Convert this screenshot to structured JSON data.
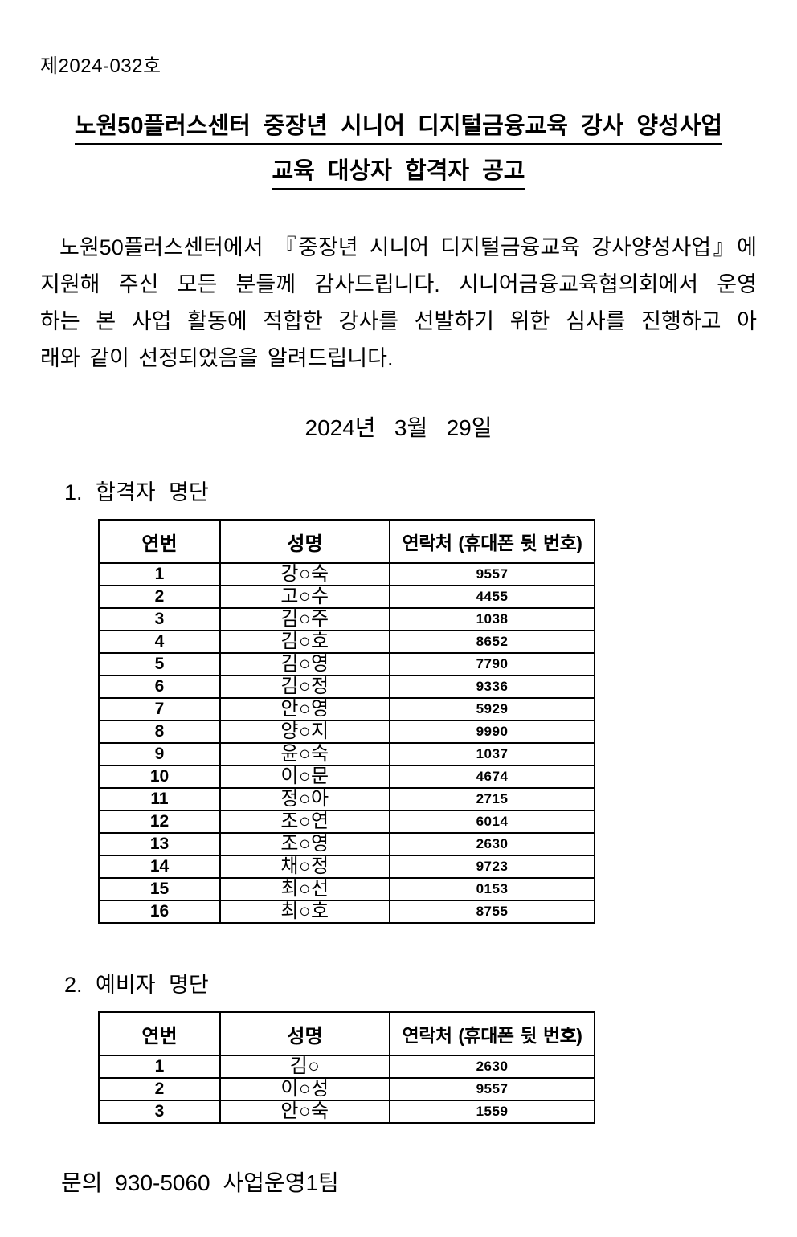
{
  "doc": {
    "number": "제2024-032호",
    "title_lines": [
      "노원50플러스센터 중장년 시니어 디지털금융교육 강사 양성사업",
      "교육 대상자 합격자 공고"
    ],
    "body_lines": [
      "노원50플러스센터에서 『중장년 시니어 디지털금융교육 강사양성사업』에",
      "지원해 주신 모든 분들께 감사드립니다. 시니어금융교육협의회에서 운영",
      "하는 본 사업 활동에 적합한 강사를 선발하기 위한 심사를 진행하고 아",
      "래와 같이 선정되었음을 알려드립니다."
    ],
    "date": "2024년   3월   29일",
    "section1_title": "1. 합격자 명단",
    "section2_title": "2. 예비자 명단",
    "contact": "문의 930-5060 사업운영1팀"
  },
  "table_headers": [
    "연번",
    "성명",
    "연락처 (휴대폰 뒷 번호)"
  ],
  "pass_list": [
    [
      "1",
      "강○숙",
      "9557"
    ],
    [
      "2",
      "고○수",
      "4455"
    ],
    [
      "3",
      "김○주",
      "1038"
    ],
    [
      "4",
      "김○호",
      "8652"
    ],
    [
      "5",
      "김○영",
      "7790"
    ],
    [
      "6",
      "김○정",
      "9336"
    ],
    [
      "7",
      "안○영",
      "5929"
    ],
    [
      "8",
      "양○지",
      "9990"
    ],
    [
      "9",
      "윤○숙",
      "1037"
    ],
    [
      "10",
      "이○문",
      "4674"
    ],
    [
      "11",
      "정○아",
      "2715"
    ],
    [
      "12",
      "조○연",
      "6014"
    ],
    [
      "13",
      "조○영",
      "2630"
    ],
    [
      "14",
      "채○정",
      "9723"
    ],
    [
      "15",
      "최○선",
      "0153"
    ],
    [
      "16",
      "최○호",
      "8755"
    ]
  ],
  "reserve_list": [
    [
      "1",
      "김○",
      "2630"
    ],
    [
      "2",
      "이○성",
      "9557"
    ],
    [
      "3",
      "안○숙",
      "1559"
    ]
  ],
  "colors": {
    "text": "#000000",
    "background": "#ffffff",
    "table_border": "#000000"
  }
}
